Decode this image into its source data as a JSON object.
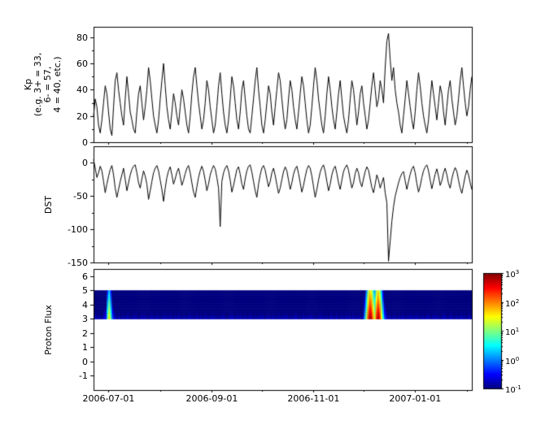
{
  "figure": {
    "background": "#ffffff",
    "line_color": "#000000",
    "xlim_days": [
      0,
      227
    ],
    "x_start_date": "2006-06-22",
    "x_axis": {
      "tick_labels": [
        "2006-07-01",
        "2006-09-01",
        "2006-11-01",
        "2007-01-01"
      ],
      "tick_days": [
        9,
        71,
        132,
        193
      ],
      "minor_tick_days": [
        40,
        101,
        162,
        224
      ]
    }
  },
  "chart_data": [
    {
      "type": "line",
      "name": "kp",
      "ylabel": "Kp\n(e.g. 3+ = 33,\n6- = 57,\n4 = 40, etc.)",
      "yticks": [
        0,
        20,
        40,
        60,
        80
      ],
      "yticks_minor": [
        10,
        30,
        50,
        70
      ],
      "ylim": [
        0,
        88
      ],
      "x_step_days": 1,
      "values": [
        20,
        33,
        27,
        13,
        7,
        17,
        30,
        43,
        37,
        23,
        10,
        5,
        27,
        47,
        53,
        40,
        30,
        20,
        13,
        33,
        50,
        37,
        23,
        17,
        10,
        7,
        23,
        37,
        43,
        30,
        17,
        27,
        40,
        57,
        47,
        33,
        20,
        13,
        7,
        17,
        33,
        47,
        60,
        43,
        27,
        17,
        10,
        23,
        37,
        30,
        20,
        13,
        27,
        40,
        33,
        23,
        13,
        7,
        20,
        37,
        50,
        57,
        43,
        30,
        20,
        10,
        17,
        30,
        47,
        40,
        27,
        17,
        7,
        13,
        27,
        43,
        53,
        37,
        23,
        13,
        7,
        17,
        33,
        50,
        43,
        30,
        17,
        10,
        23,
        40,
        47,
        33,
        20,
        10,
        7,
        20,
        33,
        47,
        57,
        40,
        27,
        13,
        7,
        17,
        30,
        43,
        37,
        23,
        13,
        27,
        40,
        53,
        47,
        33,
        20,
        10,
        17,
        33,
        47,
        40,
        27,
        17,
        10,
        23,
        37,
        50,
        43,
        30,
        17,
        7,
        13,
        27,
        43,
        57,
        47,
        33,
        23,
        13,
        7,
        20,
        37,
        50,
        40,
        27,
        17,
        10,
        23,
        37,
        47,
        33,
        20,
        13,
        7,
        17,
        33,
        47,
        40,
        27,
        13,
        23,
        37,
        43,
        30,
        20,
        10,
        17,
        30,
        43,
        53,
        40,
        27,
        33,
        47,
        40,
        30,
        57,
        77,
        83,
        63,
        47,
        57,
        40,
        30,
        23,
        13,
        7,
        20,
        33,
        47,
        37,
        27,
        17,
        10,
        23,
        40,
        53,
        43,
        30,
        20,
        13,
        7,
        17,
        33,
        47,
        37,
        27,
        17,
        30,
        43,
        37,
        23,
        13,
        27,
        40,
        47,
        33,
        23,
        13,
        20,
        33,
        47,
        57,
        43,
        30,
        20,
        27,
        40,
        50
      ]
    },
    {
      "type": "line",
      "name": "dst",
      "ylabel": "DST",
      "yticks": [
        0,
        -50,
        -100,
        -150
      ],
      "yticks_minor": [
        -25,
        -75,
        -125
      ],
      "ylim": [
        -150,
        25
      ],
      "x_step_days": 1,
      "values": [
        5,
        -8,
        -22,
        -15,
        -5,
        -12,
        -28,
        -45,
        -32,
        -20,
        -10,
        -4,
        -18,
        -38,
        -52,
        -40,
        -28,
        -18,
        -8,
        -25,
        -42,
        -30,
        -18,
        -10,
        -5,
        -3,
        -15,
        -30,
        -38,
        -24,
        -12,
        -20,
        -32,
        -55,
        -42,
        -28,
        -15,
        -8,
        -4,
        -12,
        -26,
        -40,
        -58,
        -38,
        -22,
        -12,
        -6,
        -18,
        -32,
        -24,
        -14,
        -8,
        -20,
        -34,
        -26,
        -16,
        -8,
        -4,
        -15,
        -30,
        -44,
        -52,
        -36,
        -22,
        -12,
        -5,
        -13,
        -26,
        -42,
        -32,
        -18,
        -10,
        -4,
        -9,
        -22,
        -38,
        -96,
        -28,
        -15,
        -8,
        -4,
        -12,
        -26,
        -44,
        -34,
        -22,
        -10,
        -6,
        -17,
        -32,
        -40,
        -24,
        -12,
        -5,
        -3,
        -14,
        -28,
        -42,
        -52,
        -32,
        -18,
        -8,
        -4,
        -11,
        -24,
        -36,
        -28,
        -15,
        -8,
        -19,
        -33,
        -46,
        -38,
        -25,
        -13,
        -6,
        -12,
        -26,
        -40,
        -30,
        -17,
        -9,
        -5,
        -16,
        -30,
        -44,
        -34,
        -21,
        -10,
        -4,
        -8,
        -20,
        -36,
        -52,
        -40,
        -26,
        -14,
        -7,
        -3,
        -13,
        -28,
        -42,
        -32,
        -18,
        -9,
        -5,
        -16,
        -30,
        -40,
        -26,
        -13,
        -7,
        -3,
        -11,
        -25,
        -38,
        -30,
        -16,
        -8,
        -15,
        -29,
        -36,
        -24,
        -13,
        -6,
        -11,
        -24,
        -37,
        -45,
        -32,
        -18,
        -26,
        -38,
        -30,
        -22,
        -45,
        -60,
        -148,
        -118,
        -88,
        -66,
        -50,
        -40,
        -30,
        -22,
        -16,
        -13,
        -27,
        -40,
        -28,
        -17,
        -9,
        -5,
        -15,
        -31,
        -44,
        -35,
        -22,
        -12,
        -6,
        -3,
        -12,
        -26,
        -39,
        -28,
        -17,
        -9,
        -20,
        -34,
        -27,
        -15,
        -8,
        -18,
        -31,
        -38,
        -24,
        -14,
        -7,
        -13,
        -26,
        -38,
        -46,
        -33,
        -20,
        -11,
        -18,
        -30,
        -40
      ]
    },
    {
      "type": "heatmap",
      "name": "proton_flux",
      "ylabel": "Proton Flux",
      "yticks": [
        -1,
        0,
        1,
        2,
        3,
        4,
        5,
        6
      ],
      "ylim": [
        -2,
        6.5
      ],
      "band_y": [
        3,
        5
      ],
      "x_step_days": 1,
      "colorbar": {
        "colormap": "jet",
        "scale": "log",
        "log10_range": [
          -1,
          3
        ],
        "tick_exponents": [
          3,
          2,
          1,
          0,
          -1
        ],
        "tick_base": "10"
      },
      "values_log10": [
        -0.8,
        -0.7,
        -0.85,
        -0.75,
        -0.9,
        -0.8,
        -0.6,
        -0.4,
        0.9,
        1.6,
        0.8,
        -0.2,
        -0.6,
        -0.8,
        -0.85,
        -0.7,
        -0.9,
        -0.8,
        -0.75,
        -0.85,
        -0.7,
        -0.8,
        -0.9,
        -0.75,
        -0.8,
        -0.7,
        -0.85,
        -0.9,
        -0.75,
        -0.8,
        -0.7,
        -0.85,
        -0.8,
        -0.9,
        -0.7,
        -0.8,
        -0.75,
        -0.85,
        -0.7,
        -0.8,
        -0.9,
        -0.75,
        -0.8,
        -0.7,
        -0.85,
        -0.8,
        -0.7,
        -0.9,
        -0.8,
        -0.75,
        -0.85,
        -0.7,
        -0.8,
        -0.9,
        -0.75,
        -0.8,
        -0.85,
        -0.7,
        -0.8,
        -0.75,
        -0.9,
        -0.8,
        -0.7,
        -0.85,
        -0.75,
        -0.8,
        -0.9,
        -0.7,
        -0.8,
        -0.85,
        -0.75,
        -0.8,
        -0.7,
        -0.85,
        -0.8,
        -0.9,
        -0.75,
        -0.8,
        -0.7,
        -0.85,
        -0.9,
        -0.8,
        -0.75,
        -0.7,
        -0.8,
        -0.85,
        -0.75,
        -0.8,
        -0.7,
        -0.9,
        -0.8,
        -0.75,
        -0.85,
        -0.8,
        -0.7,
        -0.8,
        -0.9,
        -0.75,
        -0.8,
        -0.85,
        -0.7,
        -0.8,
        -0.75,
        -0.9,
        -0.8,
        -0.7,
        -0.85,
        -0.8,
        -0.75,
        -0.8,
        -0.9,
        -0.7,
        -0.85,
        -0.8,
        -0.75,
        -0.8,
        -0.7,
        -0.9,
        -0.8,
        -0.85,
        -0.8,
        -0.7,
        -0.75,
        -0.85,
        -0.8,
        -0.9,
        -0.7,
        -0.8,
        -0.85,
        -0.75,
        -0.8,
        -0.7,
        -0.85,
        -0.8,
        -0.9,
        -0.75,
        -0.8,
        -0.7,
        -0.85,
        -0.8,
        -0.75,
        -0.9,
        -0.8,
        -0.7,
        -0.8,
        -0.85,
        -0.7,
        -0.8,
        -0.9,
        -0.75,
        -0.8,
        -0.85,
        -0.7,
        -0.8,
        -0.75,
        -0.9,
        -0.7,
        -0.8,
        -0.85,
        -0.75,
        -0.8,
        -0.9,
        -0.7,
        0.2,
        1.2,
        2.3,
        2.9,
        2.7,
        2.0,
        1.4,
        2.4,
        2.9,
        2.5,
        1.6,
        0.6,
        -0.2,
        -0.6,
        -0.8,
        -0.75,
        -0.85,
        -0.8,
        -0.7,
        -0.9,
        -0.8,
        -0.75,
        -0.85,
        -0.7,
        -0.8,
        -0.9,
        -0.75,
        -0.8,
        -0.7,
        -0.85,
        -0.75,
        -0.8,
        -0.7,
        -0.9,
        -0.8,
        -0.75,
        -0.85,
        -0.8,
        -0.7,
        -0.8,
        -0.9,
        -0.75,
        -0.8,
        -0.7,
        -0.85,
        -0.8,
        -0.9,
        -0.75,
        -0.7,
        -0.8,
        -0.85,
        -0.8,
        -0.7,
        -0.8,
        -0.9,
        -0.75,
        -0.8,
        -0.85,
        -0.7,
        -0.8,
        -0.75,
        -0.9,
        -0.8,
        -0.7,
        -0.8
      ]
    }
  ]
}
